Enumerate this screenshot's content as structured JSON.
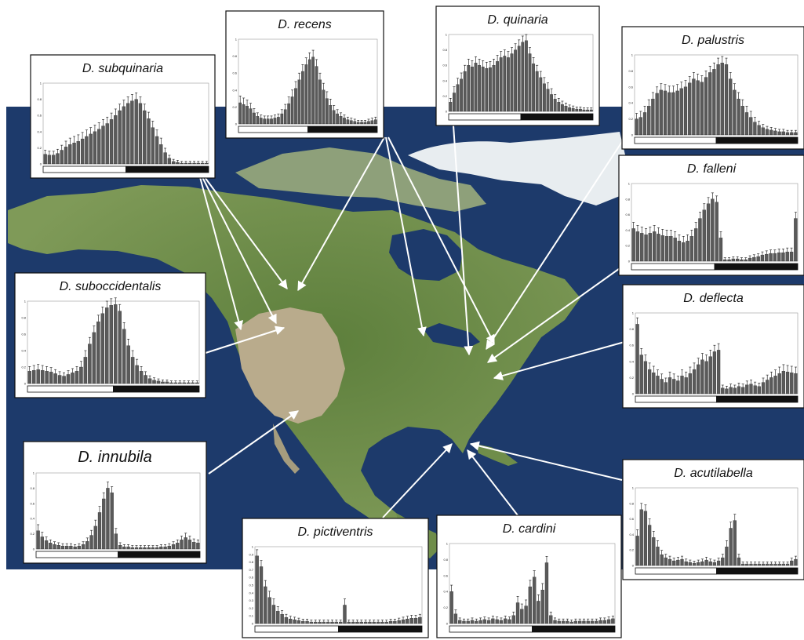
{
  "figure": {
    "colors": {
      "ocean": "#1d3a6b",
      "land": "#6f8d4a",
      "desert": "#b9ab8c",
      "ice": "#e9eef1",
      "bar": "#5a5a5a",
      "arrow": "#ffffff"
    }
  },
  "chart_data": [
    {
      "type": "bar",
      "title": "D. subquinaria",
      "ylim": [
        0,
        1
      ],
      "yticks": [
        "0",
        "0.2",
        "0.4",
        "0.6",
        "0.8",
        "1"
      ],
      "phase_bar": [
        "light",
        "dark"
      ],
      "values": [
        0.12,
        0.11,
        0.11,
        0.13,
        0.17,
        0.21,
        0.24,
        0.26,
        0.28,
        0.31,
        0.34,
        0.37,
        0.4,
        0.43,
        0.47,
        0.5,
        0.55,
        0.6,
        0.66,
        0.71,
        0.75,
        0.78,
        0.8,
        0.75,
        0.66,
        0.56,
        0.45,
        0.34,
        0.24,
        0.14,
        0.07,
        0.03,
        0.02,
        0.01,
        0.01,
        0.01,
        0.01,
        0.01,
        0.01,
        0.01
      ]
    },
    {
      "type": "bar",
      "title": "D. recens",
      "ylim": [
        0,
        1
      ],
      "yticks": [
        "0",
        "0.2",
        "0.4",
        "0.6",
        "0.8",
        "1"
      ],
      "phase_bar": [
        "light",
        "dark"
      ],
      "values": [
        0.25,
        0.23,
        0.21,
        0.18,
        0.13,
        0.09,
        0.07,
        0.06,
        0.06,
        0.06,
        0.07,
        0.08,
        0.12,
        0.17,
        0.24,
        0.32,
        0.42,
        0.52,
        0.62,
        0.7,
        0.76,
        0.79,
        0.68,
        0.52,
        0.4,
        0.3,
        0.22,
        0.16,
        0.12,
        0.09,
        0.07,
        0.05,
        0.04,
        0.03,
        0.02,
        0.02,
        0.02,
        0.03,
        0.04,
        0.05
      ]
    },
    {
      "type": "bar",
      "title": "D. quinaria",
      "ylim": [
        0,
        1
      ],
      "yticks": [
        "0",
        "0.2",
        "0.4",
        "0.6",
        "0.8",
        "1"
      ],
      "phase_bar": [
        "light",
        "dark"
      ],
      "values": [
        0.12,
        0.24,
        0.35,
        0.42,
        0.52,
        0.6,
        0.58,
        0.63,
        0.6,
        0.58,
        0.56,
        0.57,
        0.6,
        0.65,
        0.7,
        0.72,
        0.7,
        0.75,
        0.8,
        0.85,
        0.9,
        0.92,
        0.75,
        0.62,
        0.52,
        0.44,
        0.36,
        0.29,
        0.22,
        0.16,
        0.12,
        0.09,
        0.07,
        0.05,
        0.04,
        0.03,
        0.03,
        0.02,
        0.02,
        0.02
      ]
    },
    {
      "type": "bar",
      "title": "D. palustris",
      "ylim": [
        0,
        1
      ],
      "yticks": [
        "0",
        "0.2",
        "0.4",
        "0.6",
        "0.8",
        "1"
      ],
      "phase_bar": [
        "light",
        "dark"
      ],
      "values": [
        0.2,
        0.22,
        0.28,
        0.36,
        0.45,
        0.52,
        0.56,
        0.55,
        0.53,
        0.53,
        0.55,
        0.58,
        0.6,
        0.65,
        0.7,
        0.68,
        0.66,
        0.72,
        0.78,
        0.82,
        0.88,
        0.9,
        0.88,
        0.7,
        0.56,
        0.45,
        0.36,
        0.28,
        0.22,
        0.16,
        0.12,
        0.09,
        0.07,
        0.06,
        0.05,
        0.04,
        0.04,
        0.03,
        0.03,
        0.03
      ]
    },
    {
      "type": "bar",
      "title": "D. falleni",
      "ylim": [
        0,
        1
      ],
      "yticks": [
        "0",
        "0.2",
        "0.4",
        "0.6",
        "0.8",
        "1"
      ],
      "phase_bar": [
        "light",
        "dark"
      ],
      "values": [
        0.42,
        0.38,
        0.36,
        0.34,
        0.36,
        0.38,
        0.35,
        0.33,
        0.32,
        0.32,
        0.3,
        0.26,
        0.24,
        0.26,
        0.32,
        0.42,
        0.55,
        0.66,
        0.74,
        0.8,
        0.76,
        0.3,
        0.02,
        0.02,
        0.03,
        0.03,
        0.02,
        0.02,
        0.04,
        0.05,
        0.06,
        0.08,
        0.09,
        0.1,
        0.1,
        0.11,
        0.11,
        0.12,
        0.12,
        0.55
      ]
    },
    {
      "type": "bar",
      "title": "D. suboccidentalis",
      "ylim": [
        0,
        1
      ],
      "yticks": [
        "0",
        "0.2",
        "0.4",
        "0.6",
        "0.8",
        "1"
      ],
      "phase_bar": [
        "light",
        "dark"
      ],
      "values": [
        0.15,
        0.16,
        0.17,
        0.16,
        0.15,
        0.14,
        0.12,
        0.1,
        0.09,
        0.11,
        0.13,
        0.15,
        0.2,
        0.32,
        0.48,
        0.62,
        0.75,
        0.85,
        0.92,
        0.95,
        0.96,
        0.88,
        0.66,
        0.46,
        0.32,
        0.22,
        0.15,
        0.1,
        0.06,
        0.04,
        0.03,
        0.02,
        0.02,
        0.01,
        0.01,
        0.01,
        0.01,
        0.01,
        0.01,
        0.01
      ]
    },
    {
      "type": "bar",
      "title": "D. deflecta",
      "ylim": [
        0,
        1
      ],
      "yticks": [
        "0",
        "0.2",
        "0.4",
        "0.6",
        "0.8",
        "1"
      ],
      "phase_bar": [
        "light",
        "dark"
      ],
      "values": [
        0.86,
        0.48,
        0.4,
        0.3,
        0.26,
        0.22,
        0.18,
        0.14,
        0.2,
        0.18,
        0.16,
        0.22,
        0.2,
        0.25,
        0.3,
        0.36,
        0.42,
        0.4,
        0.46,
        0.52,
        0.54,
        0.07,
        0.06,
        0.08,
        0.07,
        0.09,
        0.08,
        0.11,
        0.12,
        0.1,
        0.09,
        0.14,
        0.17,
        0.2,
        0.22,
        0.25,
        0.28,
        0.27,
        0.26,
        0.25
      ]
    },
    {
      "type": "bar",
      "title": "D. innubila",
      "ylim": [
        0,
        1
      ],
      "yticks": [
        "0",
        "0.2",
        "0.4",
        "0.6",
        "0.8",
        "1"
      ],
      "phase_bar": [
        "light",
        "dark"
      ],
      "values": [
        0.24,
        0.16,
        0.11,
        0.08,
        0.06,
        0.05,
        0.04,
        0.04,
        0.04,
        0.03,
        0.04,
        0.06,
        0.1,
        0.18,
        0.3,
        0.48,
        0.66,
        0.8,
        0.74,
        0.2,
        0.05,
        0.03,
        0.03,
        0.02,
        0.02,
        0.02,
        0.02,
        0.02,
        0.02,
        0.02,
        0.03,
        0.03,
        0.04,
        0.06,
        0.08,
        0.12,
        0.15,
        0.12,
        0.09,
        0.08
      ]
    },
    {
      "type": "bar",
      "title": "D. acutilabella",
      "ylim": [
        0,
        1
      ],
      "yticks": [
        "0",
        "0.2",
        "0.4",
        "0.6",
        "0.8",
        "1"
      ],
      "phase_bar": [
        "light",
        "dark"
      ],
      "values": [
        0.38,
        0.72,
        0.7,
        0.52,
        0.36,
        0.24,
        0.14,
        0.1,
        0.08,
        0.06,
        0.07,
        0.08,
        0.05,
        0.04,
        0.03,
        0.04,
        0.05,
        0.07,
        0.05,
        0.04,
        0.06,
        0.1,
        0.24,
        0.48,
        0.58,
        0.1,
        0.02,
        0.02,
        0.02,
        0.02,
        0.02,
        0.02,
        0.02,
        0.02,
        0.02,
        0.02,
        0.02,
        0.02,
        0.06,
        0.08
      ]
    },
    {
      "type": "bar",
      "title": "D. pictiventris",
      "ylim": [
        0,
        1
      ],
      "yticks": [
        "0",
        "0.1",
        "0.2",
        "0.3",
        "0.4",
        "0.5",
        "0.6",
        "0.7",
        "0.8",
        "0.9",
        "1"
      ],
      "phase_bar": [
        "light",
        "dark"
      ],
      "values": [
        0.88,
        0.74,
        0.48,
        0.34,
        0.24,
        0.16,
        0.12,
        0.08,
        0.06,
        0.05,
        0.04,
        0.03,
        0.03,
        0.02,
        0.02,
        0.02,
        0.02,
        0.02,
        0.02,
        0.02,
        0.02,
        0.24,
        0.02,
        0.02,
        0.02,
        0.02,
        0.02,
        0.02,
        0.02,
        0.02,
        0.02,
        0.02,
        0.03,
        0.03,
        0.04,
        0.05,
        0.06,
        0.07,
        0.07,
        0.08
      ]
    },
    {
      "type": "bar",
      "title": "D. cardini",
      "ylim": [
        0,
        1
      ],
      "yticks": [
        "0",
        "0.2",
        "0.4",
        "0.6",
        "0.8",
        "1"
      ],
      "phase_bar": [
        "light",
        "dark"
      ],
      "values": [
        0.4,
        0.12,
        0.04,
        0.03,
        0.03,
        0.04,
        0.03,
        0.04,
        0.05,
        0.04,
        0.06,
        0.05,
        0.04,
        0.06,
        0.05,
        0.1,
        0.26,
        0.18,
        0.22,
        0.46,
        0.58,
        0.28,
        0.42,
        0.76,
        0.1,
        0.04,
        0.03,
        0.03,
        0.03,
        0.02,
        0.03,
        0.03,
        0.03,
        0.03,
        0.03,
        0.03,
        0.04,
        0.04,
        0.05,
        0.06
      ]
    }
  ]
}
